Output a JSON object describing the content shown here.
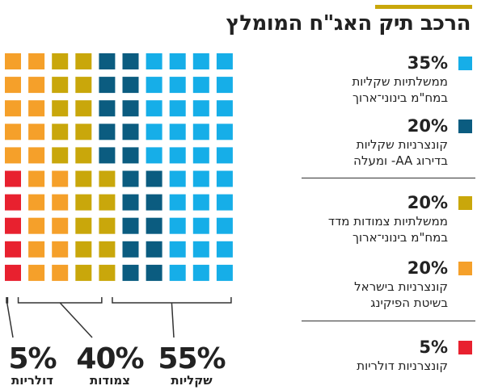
{
  "title": "הרכב תיק האג\"ח המומלץ",
  "colors": {
    "accent": "#c9a70b"
  },
  "chart_data": {
    "type": "waffle",
    "title": "הרכב תיק האג\"ח המומלץ",
    "grid": {
      "rows": 10,
      "columns": 10
    },
    "series": [
      {
        "name": "ממשלתיות שקליות במח\"מ בינוני־ארוך",
        "value": 35,
        "color": "#16aee8"
      },
      {
        "name": "קונצרניות שקליות בדירוג AA- ומעלה",
        "value": 20,
        "color": "#0b5c80"
      },
      {
        "name": "ממשלתיות צמודות מדד במח\"מ בינוני־ארוך",
        "value": 20,
        "color": "#c9a70b"
      },
      {
        "name": "קונצרניות בישראל בשיטת הפיקינג",
        "value": 20,
        "color": "#f5a02a"
      },
      {
        "name": "קונצרניות דולריות",
        "value": 5,
        "color": "#e8212f"
      }
    ],
    "legend": [
      {
        "pct": "35%",
        "lines": [
          "ממשלתיות שקליות",
          "במח\"מ בינוני־ארוך"
        ],
        "color": "#16aee8"
      },
      {
        "pct": "20%",
        "lines": [
          "קונצרניות שקליות",
          "בדירוג AA- ומעלה"
        ],
        "color": "#0b5c80"
      },
      {
        "pct": "20%",
        "lines": [
          "ממשלתיות צמודות מדד",
          "במח\"מ בינוני־ארוך"
        ],
        "color": "#c9a70b"
      },
      {
        "pct": "20%",
        "lines": [
          "קונצרניות בישראל",
          "בשיטת הפיקינג"
        ],
        "color": "#f5a02a"
      },
      {
        "pct": "5%",
        "lines": [
          "קונצרניות דולריות"
        ],
        "color": "#e8212f"
      }
    ],
    "groups": [
      {
        "pct": "5%",
        "label": "דולריות",
        "value": 5
      },
      {
        "pct": "40%",
        "label": "צמודות",
        "value": 40
      },
      {
        "pct": "55%",
        "label": "שקליות",
        "value": 55
      }
    ]
  }
}
